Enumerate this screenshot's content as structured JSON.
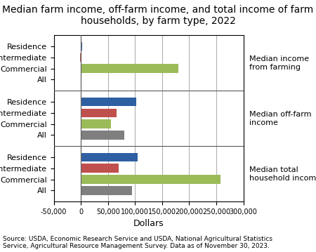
{
  "chart_data": {
    "type": "bar",
    "orientation": "horizontal",
    "title": "Median farm income, off-farm income, and total income of farm\nhouseholds, by farm type, 2022",
    "source": "Source: USDA, Economic Research Service and USDA, National Agricultural Statistics\nService, Agricultural Resource Management Survey. Data as of November 30, 2023.",
    "xlabel": "Dollars",
    "categories": [
      "Residence",
      "Intermediate",
      "Commercial",
      "All"
    ],
    "series": [
      {
        "name": "Median income\nfrom farming",
        "colors": [
          "#2e5fa3",
          "#c0504d",
          "#9bbb59",
          "#7f7f7f"
        ],
        "values": [
          2000,
          -1000,
          180000,
          500
        ]
      },
      {
        "name": "Median off-farm\nincome",
        "colors": [
          "#2e5fa3",
          "#c0504d",
          "#9bbb59",
          "#7f7f7f"
        ],
        "values": [
          102000,
          66000,
          56000,
          80000
        ]
      },
      {
        "name": "Median total\nhousehold income",
        "colors": [
          "#2e5fa3",
          "#c0504d",
          "#9bbb59",
          "#7f7f7f"
        ],
        "values": [
          105000,
          70000,
          258000,
          95000
        ]
      }
    ],
    "xlim": [
      -50000,
      300000
    ],
    "xticks": [
      {
        "value": -50000,
        "label": "-50,000"
      },
      0,
      {
        "value": 50000,
        "label": "50,000"
      },
      {
        "value": 100000,
        "label": "100,000"
      },
      {
        "value": 150000,
        "label": "150,000"
      },
      {
        "value": 200000,
        "label": "200,000"
      },
      {
        "value": 250000,
        "label": "250,000"
      },
      {
        "value": 300000,
        "label": "300,000"
      }
    ],
    "grid": true
  }
}
